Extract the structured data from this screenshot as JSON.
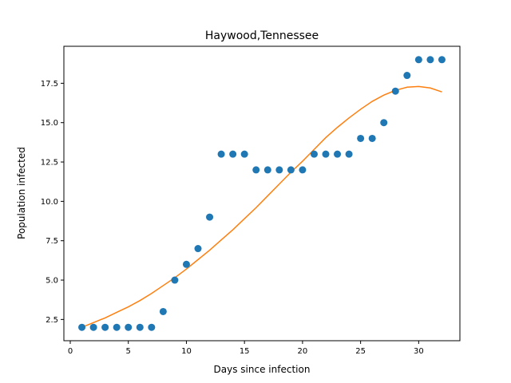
{
  "chart_data": {
    "type": "scatter",
    "title": "Haywood,Tennessee",
    "xlabel": "Days since infection",
    "ylabel": "Population infected",
    "xlim": [
      -0.55,
      33.55
    ],
    "ylim": [
      1.15,
      19.85
    ],
    "xticks": [
      0,
      5,
      10,
      15,
      20,
      25,
      30
    ],
    "yticks": [
      2.5,
      5.0,
      7.5,
      10.0,
      12.5,
      15.0,
      17.5
    ],
    "grid": false,
    "series": [
      {
        "kind": "scatter",
        "color": "#1f77b4",
        "x": [
          1,
          2,
          3,
          4,
          5,
          6,
          7,
          8,
          9,
          10,
          11,
          12,
          13,
          14,
          15,
          16,
          17,
          18,
          19,
          20,
          21,
          22,
          23,
          24,
          25,
          26,
          27,
          28,
          29,
          30,
          31,
          32
        ],
        "y": [
          2,
          2,
          2,
          2,
          2,
          2,
          2,
          3,
          5,
          6,
          7,
          9,
          13,
          13,
          13,
          12,
          12,
          12,
          12,
          12,
          13,
          13,
          13,
          13,
          14,
          14,
          15,
          17,
          18,
          19,
          19,
          19
        ]
      },
      {
        "kind": "line",
        "color": "#ff7f0e",
        "x": [
          1,
          2,
          3,
          4,
          5,
          6,
          7,
          8,
          9,
          10,
          11,
          12,
          13,
          14,
          15,
          16,
          17,
          18,
          19,
          20,
          21,
          22,
          23,
          24,
          25,
          26,
          27,
          28,
          29,
          30,
          31,
          32
        ],
        "y": [
          2.0,
          2.3,
          2.6,
          2.95,
          3.3,
          3.7,
          4.15,
          4.65,
          5.15,
          5.7,
          6.3,
          6.9,
          7.55,
          8.2,
          8.9,
          9.6,
          10.35,
          11.1,
          11.85,
          12.55,
          13.3,
          14.05,
          14.7,
          15.3,
          15.85,
          16.35,
          16.75,
          17.05,
          17.25,
          17.3,
          17.2,
          16.95
        ]
      }
    ]
  }
}
